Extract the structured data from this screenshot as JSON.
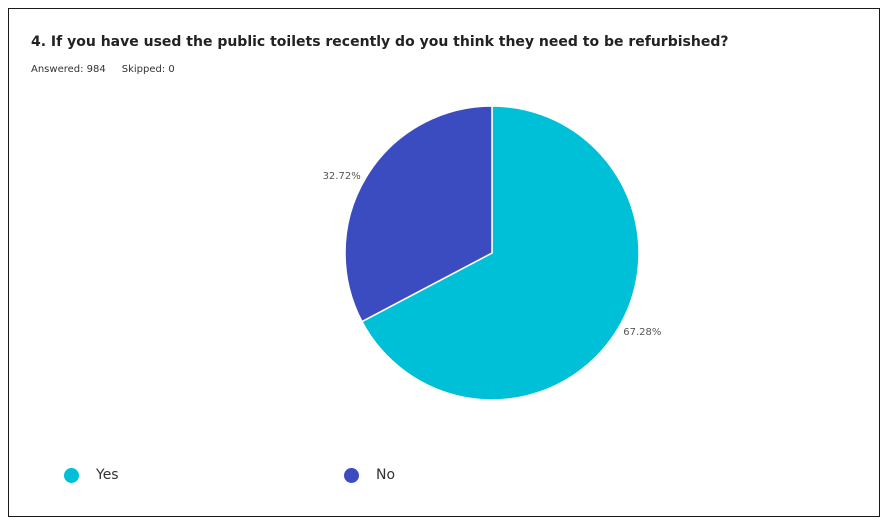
{
  "question": "4. If you have used the public toilets recently do you think they need to be refurbished?",
  "answered_label": "Answered: 984",
  "skipped_label": "Skipped: 0",
  "chart_data": {
    "type": "pie",
    "categories": [
      "Yes",
      "No"
    ],
    "values": [
      67.28,
      32.72
    ],
    "labels": [
      "67.28%",
      "32.72%"
    ],
    "colors": [
      "#00c0d8",
      "#3b4cc0"
    ],
    "legend": "bottom"
  }
}
